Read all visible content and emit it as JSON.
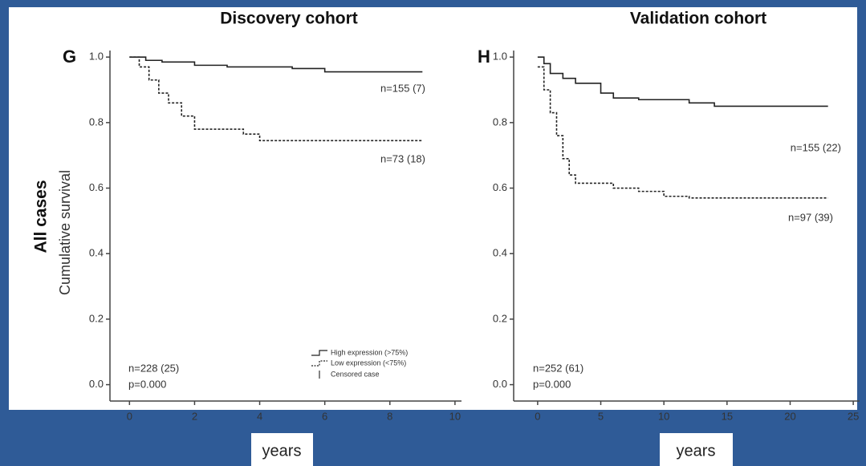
{
  "row_label": "All cases",
  "chart_data": [
    {
      "type": "line",
      "step": true,
      "panel": "G",
      "title": "Discovery cohort",
      "ylabel": "Cumulative survival",
      "xlabel": "years",
      "xlim": [
        -0.6,
        10.2
      ],
      "ylim": [
        -0.05,
        1.02
      ],
      "xticks": [
        0,
        2,
        4,
        6,
        8,
        10
      ],
      "yticks": [
        {
          "value": 0,
          "label": "0.0"
        },
        0.2,
        0.4,
        0.6,
        0.8,
        {
          "value": 1,
          "label": "1.0"
        }
      ],
      "series": [
        {
          "name": "High expression (>75%)",
          "color": "#222222",
          "dashed": false,
          "x": [
            0,
            0.5,
            1,
            2,
            3,
            5,
            6,
            9
          ],
          "values": [
            1.0,
            0.99,
            0.985,
            0.975,
            0.97,
            0.965,
            0.955,
            0.955
          ]
        },
        {
          "name": "Low expression (<75%)",
          "color": "#222222",
          "dashed": true,
          "x": [
            0,
            0.3,
            0.6,
            0.9,
            1.2,
            1.6,
            2,
            3,
            3.5,
            4,
            9
          ],
          "values": [
            1.0,
            0.97,
            0.93,
            0.89,
            0.86,
            0.82,
            0.78,
            0.78,
            0.765,
            0.745,
            0.745
          ]
        }
      ],
      "legend_extra": "Censored case",
      "annotations": [
        "n=155 (7)",
        "n=73 (18)",
        "n=228 (25)",
        "p=0.000"
      ]
    },
    {
      "type": "line",
      "step": true,
      "panel": "H",
      "title": "Validation cohort",
      "xlabel": "years",
      "xlim": [
        -1.9,
        25.5
      ],
      "ylim": [
        -0.05,
        1.02
      ],
      "xticks": [
        0,
        5,
        10,
        15,
        20,
        25
      ],
      "yticks": [
        {
          "value": 0,
          "label": "0.0"
        },
        0.2,
        0.4,
        0.6,
        0.8,
        {
          "value": 1,
          "label": "1.0"
        }
      ],
      "series": [
        {
          "name": "High expression (>75%)",
          "color": "#222222",
          "dashed": false,
          "x": [
            0,
            0.5,
            1,
            2,
            3,
            5,
            6,
            8,
            12,
            14,
            23
          ],
          "values": [
            1.0,
            0.98,
            0.95,
            0.935,
            0.92,
            0.89,
            0.875,
            0.87,
            0.86,
            0.85,
            0.85
          ]
        },
        {
          "name": "Low expression (<75%)",
          "color": "#222222",
          "dashed": true,
          "x": [
            0,
            0.5,
            1,
            1.5,
            2,
            2.5,
            3,
            6,
            8,
            10,
            12,
            23
          ],
          "values": [
            0.97,
            0.9,
            0.83,
            0.76,
            0.69,
            0.64,
            0.615,
            0.6,
            0.59,
            0.575,
            0.57,
            0.57
          ]
        }
      ],
      "annotations": [
        "n=155 (22)",
        "n=97 (39)",
        "n=252 (61)",
        "p=0.000"
      ]
    }
  ]
}
